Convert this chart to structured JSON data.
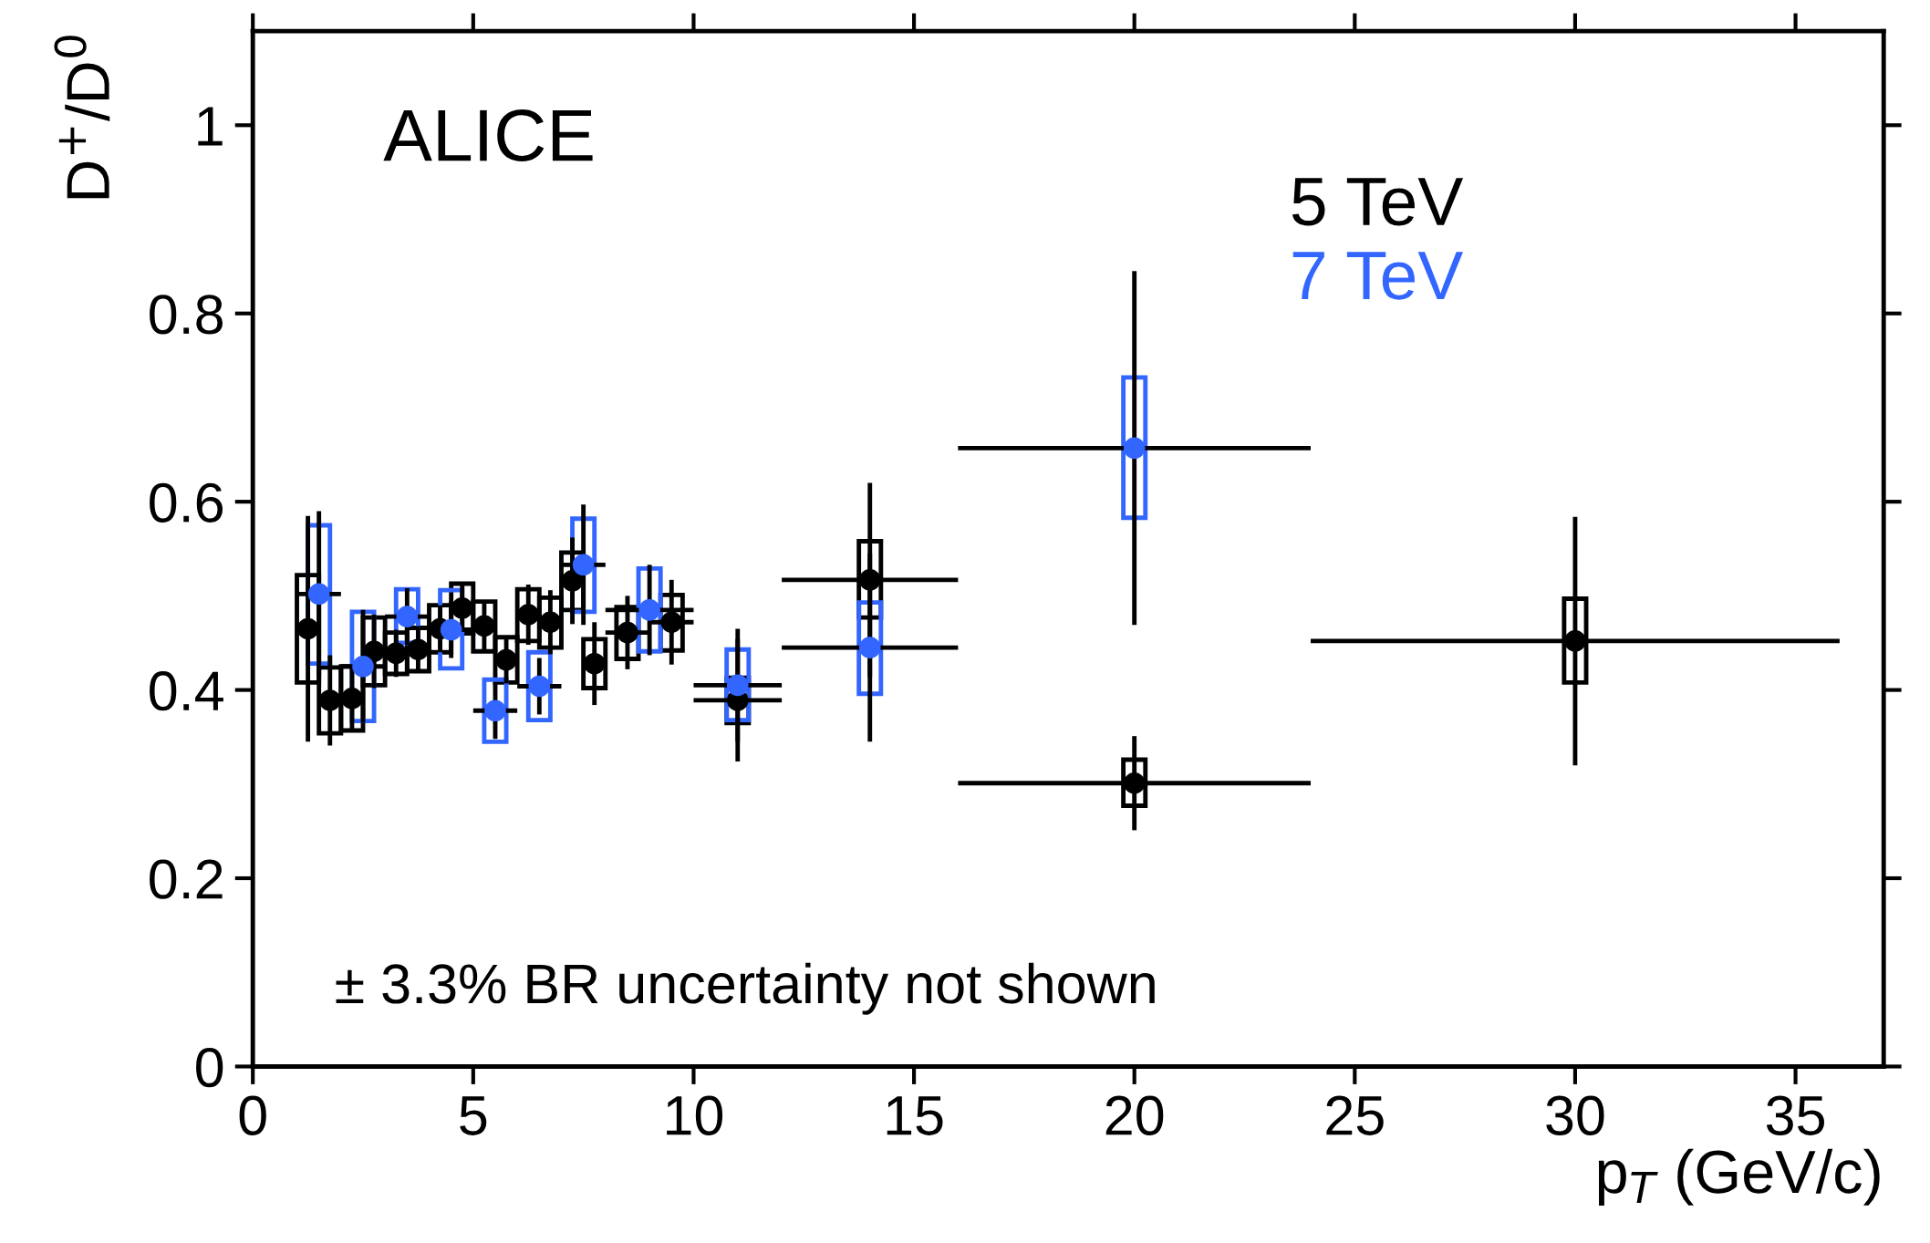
{
  "chart_data": {
    "type": "scatter",
    "xlabel": "p$_{T}$ (GeV/c)",
    "ylabel": "D$^{+}$/D$^{0}$",
    "xlim": [
      0,
      37
    ],
    "ylim": [
      0,
      1.1
    ],
    "xticks": [
      0,
      5,
      10,
      15,
      20,
      25,
      30,
      35
    ],
    "yticks": [
      0,
      0.2,
      0.4,
      0.6,
      0.8,
      1
    ],
    "marker": "circle",
    "grid": false,
    "legend": "top right",
    "annotations": [
      "ALICE",
      "± 3.3% BR uncertainty not shown"
    ],
    "series": [
      {
        "type": "bar",
        "color": "#000000",
        "x": [
          1.25,
          1.75,
          2.25,
          2.75,
          3.25,
          3.75,
          4.25,
          4.75,
          5.25,
          5.75,
          6.25,
          6.75,
          7.25,
          7.75,
          8.5,
          9.5,
          11,
          14,
          20,
          30
        ],
        "base": [
          0.408,
          0.354,
          0.357,
          0.405,
          0.417,
          0.42,
          0.44,
          0.46,
          0.441,
          0.408,
          0.452,
          0.445,
          0.485,
          0.402,
          0.433,
          0.442,
          0.365,
          0.477,
          0.277,
          0.408
        ],
        "values": [
          0.114,
          0.07,
          0.068,
          0.072,
          0.044,
          0.046,
          0.05,
          0.053,
          0.053,
          0.048,
          0.055,
          0.053,
          0.061,
          0.052,
          0.055,
          0.059,
          0.048,
          0.081,
          0.049,
          0.089
        ]
      },
      {
        "type": "bar",
        "color": "#3366ff",
        "x": [
          1.5,
          2.5,
          3.5,
          4.5,
          5.5,
          6.5,
          7.5,
          9,
          11,
          14,
          20
        ],
        "base": [
          0.428,
          0.367,
          0.45,
          0.423,
          0.345,
          0.368,
          0.483,
          0.441,
          0.368,
          0.396,
          0.583
        ],
        "values": [
          0.147,
          0.116,
          0.057,
          0.083,
          0.066,
          0.072,
          0.099,
          0.088,
          0.075,
          0.097,
          0.149
        ]
      },
      {
        "name": "5 TeV",
        "color": "#000000",
        "x": [
          1.25,
          1.75,
          2.25,
          2.75,
          3.25,
          3.75,
          4.25,
          4.75,
          5.25,
          5.75,
          6.25,
          6.75,
          7.25,
          7.75,
          8.5,
          9.5,
          11,
          14,
          20,
          30
        ],
        "values": [
          0.465,
          0.389,
          0.391,
          0.441,
          0.439,
          0.443,
          0.465,
          0.487,
          0.468,
          0.432,
          0.48,
          0.472,
          0.516,
          0.428,
          0.461,
          0.472,
          0.389,
          0.517,
          0.301,
          0.452
        ],
        "errors": [
          0.12,
          0.048,
          0.035,
          0.039,
          0.025,
          0.025,
          0.025,
          0.025,
          0.025,
          0.025,
          0.032,
          0.034,
          0.046,
          0.044,
          0.039,
          0.045,
          0.065,
          0.103,
          0.05,
          0.132
        ],
        "xerrors": [
          0.25,
          0.25,
          0.25,
          0.25,
          0.25,
          0.25,
          0.25,
          0.25,
          0.25,
          0.25,
          0.25,
          0.25,
          0.25,
          0.25,
          0.5,
          0.5,
          1,
          2,
          4,
          6
        ]
      },
      {
        "name": "7 TeV",
        "color": "#3366ff",
        "x": [
          1.5,
          2.5,
          3.5,
          4.5,
          5.5,
          6.5,
          7.5,
          9,
          11,
          14,
          20
        ],
        "values": [
          0.502,
          0.425,
          0.478,
          0.464,
          0.378,
          0.404,
          0.533,
          0.485,
          0.405,
          0.445,
          0.657
        ],
        "errors": [
          0.088,
          0.06,
          0.03,
          0.03,
          0.03,
          0.03,
          0.064,
          0.048,
          0.06,
          0.1,
          0.188
        ],
        "xerrors": [
          0.5,
          0.5,
          0.5,
          0.5,
          0.5,
          0.5,
          0.5,
          1,
          1,
          2,
          4
        ]
      }
    ]
  }
}
